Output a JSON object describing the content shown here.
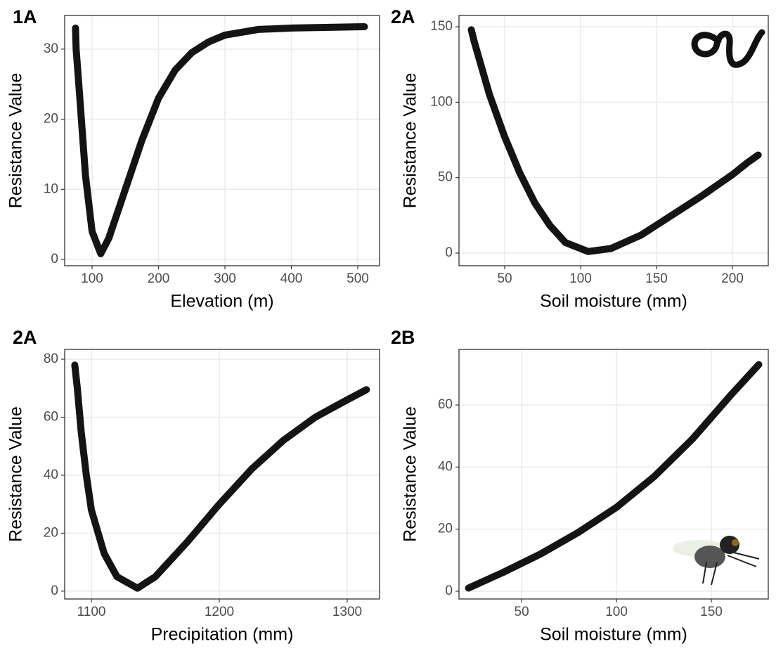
{
  "chart_data": [
    {
      "type": "scatter",
      "title": "1A",
      "x_label": "Elevation (m)",
      "y_label": "Resistance Value",
      "color": "#000000",
      "grid": true,
      "x": [
        75,
        76,
        80,
        90,
        100,
        113,
        125,
        150,
        175,
        200,
        225,
        250,
        275,
        300,
        350,
        400,
        450,
        510
      ],
      "values": [
        33,
        30,
        25,
        12,
        4,
        0.8,
        3,
        10,
        17,
        23,
        27,
        29.5,
        31,
        32,
        32.8,
        33,
        33.1,
        33.2
      ],
      "xlim": [
        58.7,
        532.8
      ],
      "xticks": [
        100,
        200,
        300,
        400,
        500
      ],
      "ylim": [
        -0.9,
        34.8
      ],
      "yticks": [
        0,
        10,
        20,
        30
      ]
    },
    {
      "type": "scatter",
      "title": "2A",
      "x_label": "Soil moisture (mm)",
      "y_label": "Resistance Value",
      "color": "#000000",
      "grid": true,
      "x": [
        28,
        30,
        40,
        50,
        60,
        70,
        80,
        90,
        105,
        120,
        140,
        160,
        180,
        200,
        210,
        217
      ],
      "values": [
        148,
        140,
        105,
        77,
        53,
        33,
        18,
        7,
        1,
        3,
        12,
        25,
        38,
        52,
        60,
        65
      ],
      "xlim": [
        19.9,
        223.6
      ],
      "xticks": [
        50,
        100,
        150,
        200
      ],
      "ylim": [
        -8.4,
        157.5
      ],
      "yticks": [
        0,
        50,
        100,
        150
      ]
    },
    {
      "type": "scatter",
      "title": "2A",
      "x_label": "Precipitation (mm)",
      "y_label": "Resistance Value",
      "color": "#000000",
      "grid": true,
      "x": [
        1087,
        1089,
        1092,
        1096,
        1100,
        1110,
        1120,
        1136,
        1150,
        1175,
        1200,
        1225,
        1250,
        1275,
        1300,
        1315
      ],
      "values": [
        78,
        70,
        55,
        40,
        28,
        13,
        5,
        1,
        5,
        17,
        30,
        42,
        52,
        60,
        66,
        69.5
      ],
      "xlim": [
        1079.1,
        1325.3
      ],
      "xticks": [
        1100,
        1200,
        1300
      ],
      "ylim": [
        -2.7,
        83.4
      ],
      "yticks": [
        0,
        20,
        40,
        60,
        80
      ]
    },
    {
      "type": "scatter",
      "title": "2B",
      "x_label": "Soil moisture (mm)",
      "y_label": "Resistance Value",
      "color": "#000000",
      "grid": true,
      "x": [
        22,
        40,
        60,
        80,
        100,
        120,
        140,
        160,
        175
      ],
      "values": [
        1,
        6,
        12,
        19,
        27,
        37,
        49,
        63,
        73
      ],
      "xlim": [
        17.0,
        180.0
      ],
      "xticks": [
        50,
        100,
        150
      ],
      "ylim": [
        -2.5,
        77.9
      ],
      "yticks": [
        0,
        20,
        40,
        60
      ]
    }
  ]
}
